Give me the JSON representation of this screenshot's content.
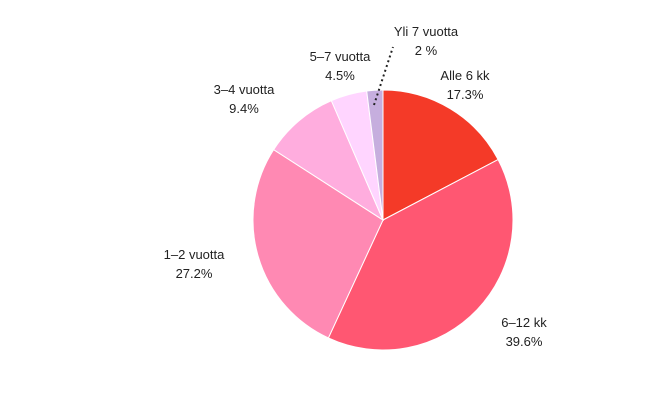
{
  "chart_data": {
    "type": "pie",
    "slices": [
      {
        "label": "Alle 6 kk",
        "value": 17.3,
        "value_label": "17.3%",
        "color": "#f43a28"
      },
      {
        "label": "6–12 kk",
        "value": 39.6,
        "value_label": "39.6%",
        "color": "#ff5772"
      },
      {
        "label": "1–2 vuotta",
        "value": 27.2,
        "value_label": "27.2%",
        "color": "#ff89b3"
      },
      {
        "label": "3–4 vuotta",
        "value": 9.4,
        "value_label": "9.4%",
        "color": "#ffadde"
      },
      {
        "label": "5–7 vuotta",
        "value": 4.5,
        "value_label": "4.5%",
        "color": "#ffd5ff"
      },
      {
        "label": "Yli 7 vuotta",
        "value": 2,
        "value_label": "2 %",
        "color": "#c6aede"
      }
    ],
    "start_angle_deg": 0,
    "direction": "clockwise"
  }
}
